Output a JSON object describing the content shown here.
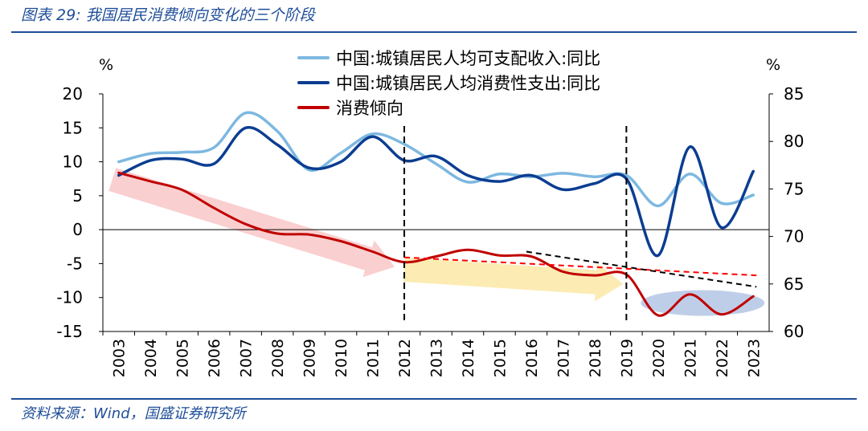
{
  "figure": {
    "title": "图表 29:  我国居民消费倾向变化的三个阶段",
    "source": "资料来源：Wind，国盛证券研究所"
  },
  "colors": {
    "brand": "#1f4e99",
    "income": "#7db8e0",
    "expense": "#0b3d91",
    "propensity": "#c00000",
    "trend_red": "#ff0000",
    "trend_black": "#000000",
    "arrow_pink": "#f9c7c7",
    "arrow_yellow": "#fce9a6",
    "ellipse": "#b4c5e4"
  },
  "chart_data": {
    "type": "line",
    "x_categories": [
      "2003",
      "2004",
      "2005",
      "2006",
      "2007",
      "2008",
      "2009",
      "2010",
      "2011",
      "2012",
      "2013",
      "2014",
      "2015",
      "2016",
      "2017",
      "2018",
      "2019",
      "2020",
      "2021",
      "2022",
      "2023"
    ],
    "left_axis": {
      "unit": "%",
      "ylim": [
        -15,
        20
      ],
      "ticks": [
        20,
        15,
        10,
        5,
        0,
        -5,
        -10,
        -15
      ]
    },
    "right_axis": {
      "unit": "%",
      "ylim": [
        60,
        85
      ],
      "ticks": [
        85,
        80,
        75,
        70,
        65,
        60
      ]
    },
    "legend": {
      "placement": "top-center"
    },
    "series": [
      {
        "name": "中国:城镇居民人均可支配收入:同比",
        "axis": "left",
        "color": "#7db8e0",
        "values": [
          10.0,
          11.2,
          11.4,
          12.1,
          17.2,
          14.5,
          8.8,
          11.3,
          14.1,
          12.6,
          9.7,
          7.0,
          8.2,
          7.8,
          8.3,
          7.8,
          8.0,
          3.5,
          8.2,
          3.9,
          5.1
        ]
      },
      {
        "name": "中国:城镇居民人均消费性支出:同比",
        "axis": "left",
        "color": "#0b3d91",
        "values": [
          8.0,
          10.2,
          10.4,
          9.7,
          15.0,
          12.5,
          9.1,
          10.0,
          13.7,
          10.2,
          10.8,
          8.0,
          7.1,
          8.0,
          5.9,
          6.8,
          7.5,
          -3.8,
          12.2,
          0.3,
          8.6
        ]
      },
      {
        "name": "消费倾向",
        "axis": "right",
        "color": "#c00000",
        "values": [
          76.7,
          75.8,
          74.9,
          73.0,
          71.3,
          70.3,
          70.2,
          69.5,
          68.4,
          67.3,
          67.9,
          68.6,
          68.0,
          67.9,
          66.3,
          65.9,
          66.0,
          61.7,
          63.9,
          61.8,
          63.7
        ]
      }
    ],
    "annotations": {
      "vertical_dashed_lines_at": [
        "2012",
        "2019"
      ],
      "red_dashed_trend": {
        "from": [
          "2012",
          67.8
        ],
        "to": [
          "2023",
          65.9
        ]
      },
      "black_dashed_trend": {
        "from": [
          "2016",
          68.4
        ],
        "to": [
          "2023",
          64.7
        ]
      },
      "stage_arrows": [
        {
          "from": [
            "2003",
            76.0
          ],
          "to": [
            "2012",
            66.8
          ],
          "color": "pink"
        },
        {
          "from": [
            "2012",
            66.5
          ],
          "to": [
            "2019",
            65.0
          ],
          "color": "yellow"
        }
      ],
      "ellipse": {
        "x_range": [
          "2019",
          "2023"
        ],
        "y_center": 63.0
      }
    }
  }
}
